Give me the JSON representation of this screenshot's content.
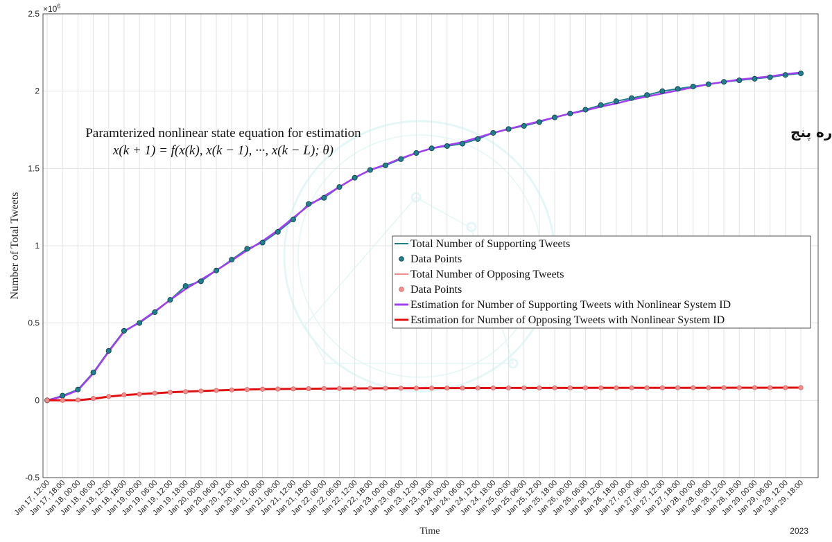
{
  "chart_data": {
    "type": "line",
    "xlabel": "Time",
    "ylabel": "Number of Total Tweets",
    "ylim": [
      -0.5,
      2.5
    ],
    "y_multiplier": "×10",
    "y_multiplier_exp": "6",
    "yticks": [
      "-0.5",
      "0",
      "0.5",
      "1",
      "1.5",
      "2",
      "2.5"
    ],
    "year_label": "2023",
    "grid": true,
    "legend_position": "center-right",
    "annotation_line1": "Paramterized nonlinear state equation for estimation",
    "annotation_line2": "x(k + 1) = f(x(k), x(k − 1), ···, x(k − L); θ)",
    "persian_note": "شکل شماره پنج",
    "x": [
      "Jan 17, 12:00",
      "Jan 17, 18:00",
      "Jan 18, 00:00",
      "Jan 18, 06:00",
      "Jan 18, 12:00",
      "Jan 18, 18:00",
      "Jan 19, 00:00",
      "Jan 19, 06:00",
      "Jan 19, 12:00",
      "Jan 19, 18:00",
      "Jan 20, 00:00",
      "Jan 20, 06:00",
      "Jan 20, 12:00",
      "Jan 20, 18:00",
      "Jan 21, 00:00",
      "Jan 21, 06:00",
      "Jan 21, 12:00",
      "Jan 21, 18:00",
      "Jan 22, 00:00",
      "Jan 22, 06:00",
      "Jan 22, 12:00",
      "Jan 22, 18:00",
      "Jan 23, 00:00",
      "Jan 23, 06:00",
      "Jan 23, 12:00",
      "Jan 23, 18:00",
      "Jan 24, 00:00",
      "Jan 24, 06:00",
      "Jan 24, 12:00",
      "Jan 24, 18:00",
      "Jan 25, 00:00",
      "Jan 25, 06:00",
      "Jan 25, 12:00",
      "Jan 25, 18:00",
      "Jan 26, 00:00",
      "Jan 26, 06:00",
      "Jan 26, 12:00",
      "Jan 26, 18:00",
      "Jan 27, 00:00",
      "Jan 27, 06:00",
      "Jan 27, 12:00",
      "Jan 27, 18:00",
      "Jan 28, 00:00",
      "Jan 28, 06:00",
      "Jan 28, 12:00",
      "Jan 28, 18:00",
      "Jan 29, 00:00",
      "Jan 29, 06:00",
      "Jan 29, 12:00",
      "Jan 29, 18:00"
    ],
    "series": [
      {
        "name": "Total Number of Supporting Tweets",
        "role": "data",
        "color": "#1f7f8c",
        "values": [
          0,
          30000,
          70000,
          180000,
          320000,
          450000,
          500000,
          570000,
          650000,
          740000,
          770000,
          840000,
          910000,
          980000,
          1020000,
          1090000,
          1170000,
          1270000,
          1310000,
          1380000,
          1440000,
          1490000,
          1520000,
          1560000,
          1600000,
          1630000,
          1645000,
          1660000,
          1690000,
          1730000,
          1755000,
          1775000,
          1800000,
          1830000,
          1855000,
          1880000,
          1910000,
          1935000,
          1955000,
          1975000,
          2000000,
          2015000,
          2030000,
          2045000,
          2060000,
          2070000,
          2080000,
          2090000,
          2105000,
          2115000
        ]
      },
      {
        "name": "Data Points",
        "role": "points",
        "color": "#1f7f8c",
        "values": [
          0,
          30000,
          70000,
          180000,
          320000,
          450000,
          500000,
          570000,
          650000,
          740000,
          770000,
          840000,
          910000,
          980000,
          1020000,
          1090000,
          1170000,
          1270000,
          1310000,
          1380000,
          1440000,
          1490000,
          1520000,
          1560000,
          1600000,
          1630000,
          1645000,
          1660000,
          1690000,
          1730000,
          1755000,
          1775000,
          1800000,
          1830000,
          1855000,
          1880000,
          1910000,
          1935000,
          1955000,
          1975000,
          2000000,
          2015000,
          2030000,
          2045000,
          2060000,
          2070000,
          2080000,
          2090000,
          2105000,
          2115000
        ]
      },
      {
        "name": "Total Number of Opposing Tweets",
        "role": "data",
        "color": "#f08c8c",
        "values": [
          0,
          0,
          2000,
          12000,
          25000,
          35000,
          40000,
          46000,
          52000,
          56000,
          60000,
          64000,
          67000,
          70000,
          72000,
          73000,
          74000,
          75000,
          76000,
          76500,
          77000,
          77500,
          78000,
          78500,
          79000,
          79200,
          79400,
          79600,
          79800,
          80000,
          80100,
          80200,
          80300,
          80400,
          80500,
          80600,
          80700,
          80800,
          80900,
          81000,
          81100,
          81200,
          81300,
          81400,
          81500,
          81600,
          81700,
          81800,
          81900,
          82000
        ]
      },
      {
        "name": "Data Points",
        "role": "points",
        "color": "#f08c8c",
        "values": [
          0,
          0,
          2000,
          12000,
          25000,
          35000,
          40000,
          46000,
          52000,
          56000,
          60000,
          64000,
          67000,
          70000,
          72000,
          73000,
          74000,
          75000,
          76000,
          76500,
          77000,
          77500,
          78000,
          78500,
          79000,
          79200,
          79400,
          79600,
          79800,
          80000,
          80100,
          80200,
          80300,
          80400,
          80500,
          80600,
          80700,
          80800,
          80900,
          81000,
          81100,
          81200,
          81300,
          81400,
          81500,
          81600,
          81700,
          81800,
          81900,
          82000
        ]
      },
      {
        "name": "Estimation for Number of Supporting Tweets with Nonlinear System ID",
        "role": "estimate",
        "color": "#a040f0",
        "values": [
          0,
          25000,
          65000,
          175000,
          315000,
          445000,
          505000,
          575000,
          650000,
          720000,
          780000,
          840000,
          905000,
          970000,
          1030000,
          1100000,
          1180000,
          1260000,
          1320000,
          1380000,
          1440000,
          1490000,
          1525000,
          1565000,
          1600000,
          1630000,
          1650000,
          1670000,
          1700000,
          1730000,
          1755000,
          1780000,
          1805000,
          1830000,
          1855000,
          1875000,
          1900000,
          1920000,
          1945000,
          1965000,
          1985000,
          2005000,
          2025000,
          2045000,
          2060000,
          2075000,
          2085000,
          2095000,
          2110000,
          2120000
        ]
      },
      {
        "name": "Estimation for Number of Opposing Tweets with Nonlinear System ID",
        "role": "estimate",
        "color": "#e01010",
        "values": [
          0,
          0,
          1000,
          10000,
          24000,
          34000,
          40000,
          46000,
          52000,
          56000,
          60000,
          64000,
          67000,
          70000,
          72000,
          73000,
          74000,
          75000,
          76000,
          76500,
          77000,
          77500,
          78000,
          78500,
          79000,
          79200,
          79400,
          79600,
          79800,
          80000,
          80100,
          80200,
          80300,
          80400,
          80500,
          80600,
          80700,
          80800,
          80900,
          81000,
          81100,
          81200,
          81300,
          81400,
          81500,
          81600,
          81700,
          81800,
          81900,
          82000
        ]
      }
    ]
  }
}
